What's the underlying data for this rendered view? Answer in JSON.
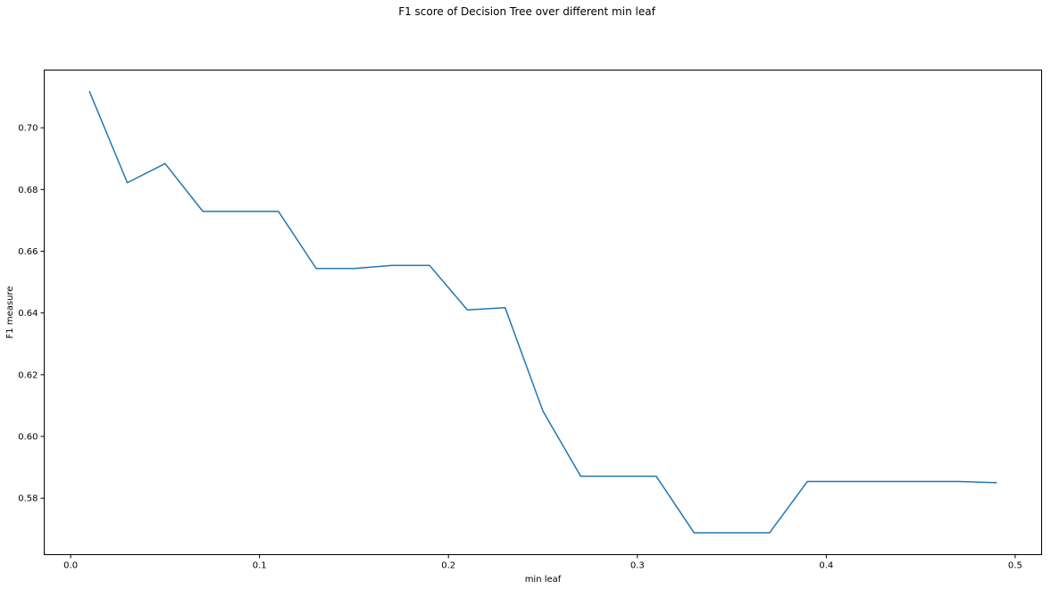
{
  "chart_data": {
    "type": "line",
    "title": "F1 score of Decision Tree over different min leaf",
    "xlabel": "min leaf",
    "ylabel": "F1 measure",
    "xlim": [
      -0.014,
      0.514
    ],
    "ylim": [
      0.5617,
      0.7187
    ],
    "xticks": [
      0.0,
      0.1,
      0.2,
      0.3,
      0.4,
      0.5
    ],
    "xtick_labels": [
      "0.0",
      "0.1",
      "0.2",
      "0.3",
      "0.4",
      "0.5"
    ],
    "yticks": [
      0.58,
      0.6,
      0.62,
      0.64,
      0.66,
      0.68,
      0.7
    ],
    "ytick_labels": [
      "0.58",
      "0.60",
      "0.62",
      "0.64",
      "0.66",
      "0.68",
      "0.70"
    ],
    "grid": false,
    "series": [
      {
        "color": "#1f77b4",
        "x": [
          0.01,
          0.03,
          0.05,
          0.07,
          0.09,
          0.11,
          0.13,
          0.15,
          0.17,
          0.19,
          0.21,
          0.23,
          0.25,
          0.27,
          0.29,
          0.31,
          0.33,
          0.35,
          0.37,
          0.39,
          0.41,
          0.43,
          0.45,
          0.47,
          0.49
        ],
        "y": [
          0.7117,
          0.6822,
          0.6884,
          0.6729,
          0.6729,
          0.6729,
          0.6544,
          0.6544,
          0.6554,
          0.6554,
          0.641,
          0.6417,
          0.6082,
          0.5871,
          0.5871,
          0.5871,
          0.5688,
          0.5688,
          0.5688,
          0.5854,
          0.5854,
          0.5854,
          0.5854,
          0.5854,
          0.585
        ]
      }
    ]
  }
}
